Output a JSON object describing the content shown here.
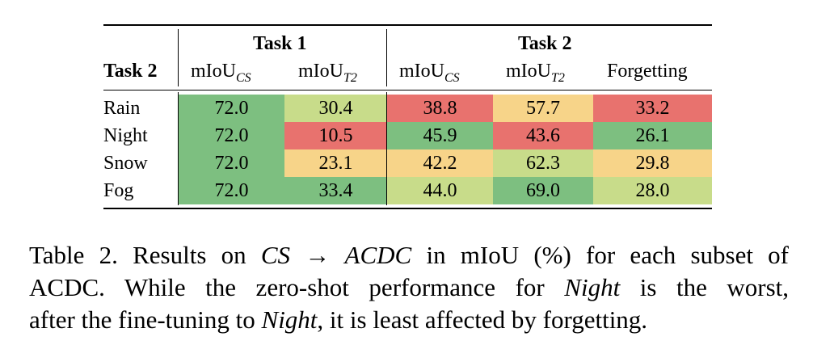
{
  "colors": {
    "green": "#7dbf80",
    "light_green": "#c8dc8a",
    "yellow": "#f7d489",
    "red": "#e8726e"
  },
  "header": {
    "task1": "Task 1",
    "task2": "Task 2",
    "row_header": "Task 2",
    "col_miou": "mIoU",
    "sub_cs": "CS",
    "sub_t2": "T2",
    "forgetting": "Forgetting"
  },
  "rows": [
    {
      "label": "Rain",
      "cells": [
        {
          "v": "72.0",
          "c": "green"
        },
        {
          "v": "30.4",
          "c": "light_green"
        },
        {
          "v": "38.8",
          "c": "red"
        },
        {
          "v": "57.7",
          "c": "yellow"
        },
        {
          "v": "33.2",
          "c": "red"
        }
      ]
    },
    {
      "label": "Night",
      "cells": [
        {
          "v": "72.0",
          "c": "green"
        },
        {
          "v": "10.5",
          "c": "red"
        },
        {
          "v": "45.9",
          "c": "green"
        },
        {
          "v": "43.6",
          "c": "red"
        },
        {
          "v": "26.1",
          "c": "green"
        }
      ]
    },
    {
      "label": "Snow",
      "cells": [
        {
          "v": "72.0",
          "c": "green"
        },
        {
          "v": "23.1",
          "c": "yellow"
        },
        {
          "v": "42.2",
          "c": "yellow"
        },
        {
          "v": "62.3",
          "c": "light_green"
        },
        {
          "v": "29.8",
          "c": "yellow"
        }
      ]
    },
    {
      "label": "Fog",
      "cells": [
        {
          "v": "72.0",
          "c": "green"
        },
        {
          "v": "33.4",
          "c": "green"
        },
        {
          "v": "44.0",
          "c": "light_green"
        },
        {
          "v": "69.0",
          "c": "green"
        },
        {
          "v": "28.0",
          "c": "light_green"
        }
      ]
    }
  ],
  "caption": {
    "l1a": "Table 2. Results on ",
    "l1b": "CS",
    "l1c": " → ",
    "l1d": "ACDC",
    "l1e": " in mIoU (%) for each subset of",
    "l2a": "ACDC. While the zero-shot performance for ",
    "l2b": "Night",
    "l2c": " is the worst,",
    "l3a": "after the fine-tuning to ",
    "l3b": "Night",
    "l3c": ", it is least affected by forgetting."
  }
}
